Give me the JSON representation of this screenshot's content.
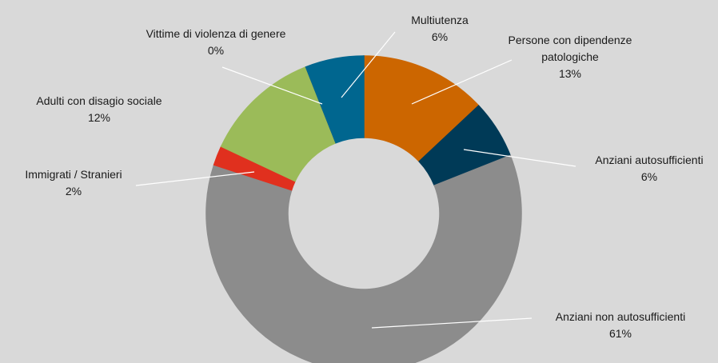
{
  "chart_data": {
    "type": "pie",
    "categories": [
      "Persone con dipendenze patologiche",
      "Anziani autosufficienti",
      "Anziani non autosufficienti",
      "Immigrati / Stranieri",
      "Adulti con disagio sociale",
      "Vittime di violenza di genere",
      "Multiutenza"
    ],
    "values": [
      13,
      6,
      61,
      2,
      12,
      0,
      6
    ],
    "value_labels": [
      "13%",
      "6%",
      "61%",
      "2%",
      "12%",
      "0%",
      "6%"
    ],
    "colors": [
      "#cc6600",
      "#003a57",
      "#8c8c8c",
      "#e0301e",
      "#9bbb59",
      "#f0a030",
      "#00668f"
    ]
  }
}
